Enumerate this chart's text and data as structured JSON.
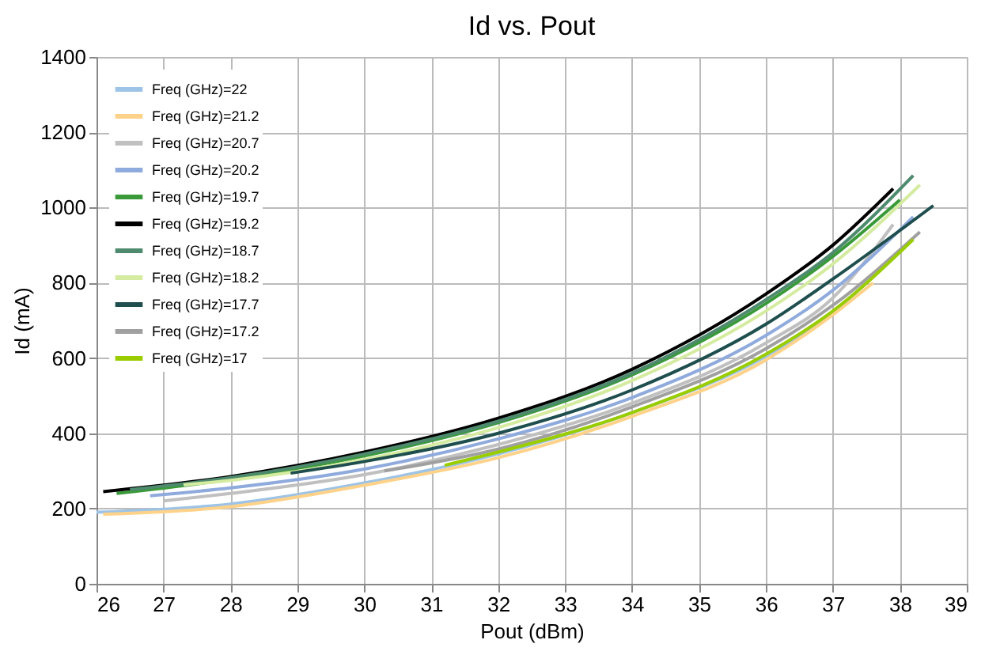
{
  "chart_data": {
    "type": "line",
    "title": "Id  vs. Pout",
    "xlabel": "Pout (dBm)",
    "ylabel": "Id (mA)",
    "xlim": [
      26,
      39
    ],
    "xticks": [
      26,
      27,
      28,
      29,
      30,
      31,
      32,
      33,
      34,
      35,
      36,
      37,
      38,
      39
    ],
    "ylim": [
      0,
      1400
    ],
    "yticks": [
      0,
      200,
      400,
      600,
      800,
      1000,
      1200,
      1400
    ],
    "grid": true,
    "legend": "top left",
    "line_style": "solid",
    "marker": "none",
    "series": [
      {
        "name": "Freq (GHz)=22",
        "color": "#9dc3e6",
        "x": [
          26.0,
          28,
          30,
          32,
          34,
          36,
          37,
          37.5
        ],
        "values": [
          190,
          212,
          268,
          345,
          455,
          605,
          720,
          800
        ]
      },
      {
        "name": "Freq (GHz)=21.2",
        "color": "#ffd28a",
        "x": [
          26.1,
          28,
          30,
          32,
          34,
          36,
          37,
          37.6
        ],
        "values": [
          185,
          205,
          262,
          335,
          445,
          595,
          715,
          800
        ]
      },
      {
        "name": "Freq (GHz)=20.7",
        "color": "#c0c0c0",
        "x": [
          27.0,
          28,
          30,
          32,
          34,
          36,
          37,
          37.9
        ],
        "values": [
          220,
          240,
          290,
          370,
          480,
          640,
          760,
          955
        ]
      },
      {
        "name": "Freq (GHz)=20.2",
        "color": "#8faadc",
        "x": [
          26.8,
          28,
          30,
          32,
          34,
          36,
          37,
          38.2
        ],
        "values": [
          234,
          255,
          305,
          385,
          495,
          660,
          780,
          975
        ]
      },
      {
        "name": "Freq (GHz)=19.7",
        "color": "#3a9a3a",
        "x": [
          26.3,
          28,
          30,
          32,
          34,
          36,
          37,
          38.0
        ],
        "values": [
          240,
          278,
          340,
          428,
          555,
          745,
          870,
          1020
        ]
      },
      {
        "name": "Freq (GHz)=19.2",
        "color": "#000000",
        "x": [
          26.1,
          28,
          30,
          32,
          34,
          36,
          37,
          37.9
        ],
        "values": [
          245,
          285,
          350,
          440,
          570,
          770,
          900,
          1050
        ]
      },
      {
        "name": "Freq (GHz)=18.7",
        "color": "#4e8a6e",
        "x": [
          26.5,
          28,
          30,
          32,
          34,
          36,
          37,
          38.2
        ],
        "values": [
          250,
          282,
          345,
          432,
          560,
          755,
          880,
          1085
        ]
      },
      {
        "name": "Freq (GHz)=18.2",
        "color": "#d4eba0",
        "x": [
          27.3,
          28,
          30,
          32,
          34,
          36,
          37,
          38.3
        ],
        "values": [
          263,
          275,
          330,
          415,
          540,
          725,
          850,
          1060
        ]
      },
      {
        "name": "Freq (GHz)=17.7",
        "color": "#1f4e4e",
        "x": [
          28.9,
          30,
          32,
          34,
          36,
          37,
          38.5
        ],
        "values": [
          294,
          325,
          400,
          515,
          690,
          810,
          1005
        ]
      },
      {
        "name": "Freq (GHz)=17.2",
        "color": "#a0a0a0",
        "x": [
          30.3,
          32,
          34,
          36,
          37,
          38.3
        ],
        "values": [
          300,
          358,
          470,
          625,
          740,
          935
        ]
      },
      {
        "name": "Freq (GHz)=17",
        "color": "#9acd00",
        "x": [
          31.2,
          32,
          34,
          36,
          37,
          38.2
        ],
        "values": [
          315,
          350,
          455,
          610,
          725,
          915
        ]
      }
    ]
  }
}
